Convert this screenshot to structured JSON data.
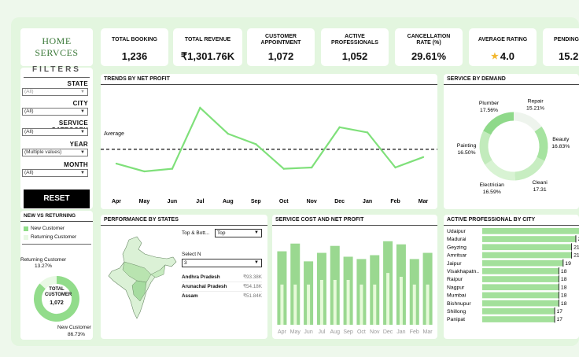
{
  "brand": {
    "line1": "HOME",
    "line2": "SERVCES"
  },
  "kpis": [
    {
      "label": "TOTAL BOOKING",
      "value": "1,236"
    },
    {
      "label": "TOTAL REVENUE",
      "value": "₹1,301.76K"
    },
    {
      "label": "CUSTOMER APPOINTMENT",
      "value": "1,072"
    },
    {
      "label": "ACTIVE PROFESSIONALS",
      "value": "1,052"
    },
    {
      "label": "CANCELLATION RATE (%)",
      "value": "29.61%"
    },
    {
      "label": "AVERAGE RATING",
      "value": "4.0",
      "icon": "star-icon"
    },
    {
      "label": "PENDING",
      "value": "15.2"
    }
  ],
  "filters": {
    "title": "FILTERS",
    "state": {
      "label": "STATE",
      "value": "(All)"
    },
    "city": {
      "label": "CITY",
      "value": "(All)"
    },
    "category": {
      "label": "SERVICE CATEGORY",
      "value": "(All)"
    },
    "year": {
      "label": "YEAR",
      "value": "(Multiple values)"
    },
    "month": {
      "label": "MONTH",
      "value": "(All)"
    },
    "reset": "RESET"
  },
  "newvsret": {
    "title": "NEW VS RETURNING",
    "legend": [
      "New Customer",
      "Returning Customer"
    ],
    "center_top": "TOTAL CUSTOMER",
    "center_value": "1,072",
    "returning_label": "Returning Customer",
    "returning_pct": "13.27%",
    "new_label": "New Customer",
    "new_pct": "86.73%"
  },
  "trends": {
    "title": "TRENDS BY NET PROFIT",
    "avg_label": "Average"
  },
  "demand": {
    "title": "SERVICE BY DEMAND"
  },
  "states": {
    "title": "PERFORMANCE BY STATES",
    "topbot_label": "Top & Bott...",
    "topbot_value": "Top",
    "selectn_label": "Select N",
    "selectn_value": "3",
    "rows": [
      {
        "name": "Andhra Pradesh",
        "value": "₹93.38K"
      },
      {
        "name": "Arunachal Pradesh",
        "value": "₹54.18K"
      },
      {
        "name": "Assam",
        "value": "₹51.84K"
      }
    ]
  },
  "costprofit": {
    "title": "SERVICE COST AND NET PROFIT"
  },
  "profcity": {
    "title": "ACTIVE PROFESSIONAL BY CITY"
  },
  "colors": {
    "green": "#7fe07a",
    "light": "#d4f2cf",
    "mid": "#a8e6a2",
    "bar_dark": "#9ad890",
    "bar_light": "#e6fad9"
  },
  "chart_data": [
    {
      "type": "line",
      "title": "TRENDS BY NET PROFIT",
      "categories": [
        "Apr",
        "May",
        "Jun",
        "Jul",
        "Aug",
        "Sep",
        "Oct",
        "Nov",
        "Dec",
        "Jan",
        "Feb",
        "Mar"
      ],
      "values": [
        43,
        37,
        39,
        86,
        66,
        58,
        39,
        40,
        71,
        67,
        40,
        48
      ],
      "average": 54,
      "ylim": [
        20,
        100
      ]
    },
    {
      "type": "pie",
      "title": "SERVICE BY DEMAND",
      "categories": [
        "Beauty",
        "Cleaning",
        "Electrician",
        "Painting",
        "Plumber",
        "Repair"
      ],
      "values": [
        16.83,
        17.31,
        16.59,
        16.5,
        17.56,
        15.21
      ],
      "labels": [
        "16.83%",
        "17.31%",
        "16.59%",
        "16.50%",
        "17.56%",
        "15.21%"
      ],
      "display_names": [
        "Beauty",
        "Cleani",
        "Electrician",
        "Painting",
        "Plumber",
        "Repair"
      ],
      "display_values": [
        "16.83%",
        "17.31",
        "16.59%",
        "16.50%",
        "17.56%",
        "15.21%"
      ]
    },
    {
      "type": "pie",
      "title": "NEW VS RETURNING",
      "categories": [
        "New Customer",
        "Returning Customer"
      ],
      "values": [
        86.73,
        13.27
      ]
    },
    {
      "type": "bar",
      "title": "SERVICE COST AND NET PROFIT",
      "categories": [
        "Apr",
        "May",
        "Jun",
        "Jul",
        "Aug",
        "Sep",
        "Oct",
        "Nov",
        "Dec",
        "Jan",
        "Feb",
        "Mar"
      ],
      "series": [
        {
          "values": [
            95,
            105,
            82,
            93,
            102,
            88,
            85,
            90,
            108,
            104,
            85,
            93
          ]
        },
        {
          "values": [
            52,
            52,
            52,
            58,
            58,
            58,
            52,
            52,
            67,
            62,
            52,
            52
          ]
        }
      ],
      "ylim": [
        0,
        120
      ]
    },
    {
      "type": "bar",
      "title": "ACTIVE PROFESSIONAL BY CITY",
      "categories": [
        "Udaipur",
        "Madurai",
        "Geyzing",
        "Amritsar",
        "Jaipur",
        "Visakhapatn..",
        "Raipur",
        "Nagpur",
        "Mumbai",
        "Bishnupur",
        "Shillong",
        "Panipat"
      ],
      "values": [
        26,
        22,
        21,
        21,
        19,
        18,
        18,
        18,
        18,
        18,
        17,
        17
      ],
      "labels": [
        "",
        "22",
        "21",
        "21",
        "19",
        "18",
        "18",
        "18",
        "18",
        "18",
        "17",
        "17"
      ],
      "xlim": [
        0,
        26
      ]
    }
  ]
}
